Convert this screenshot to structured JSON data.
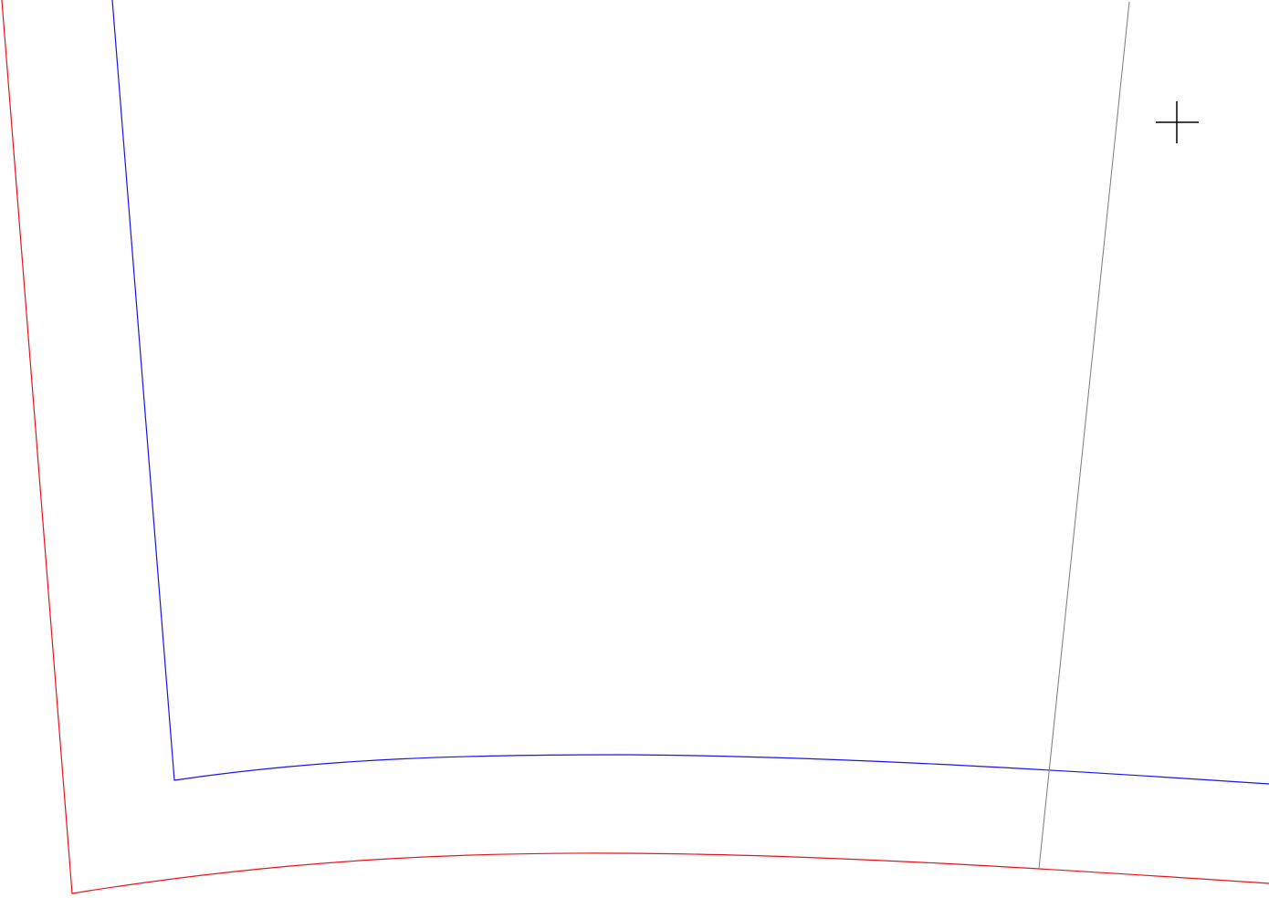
{
  "drawing": {
    "background_color": "#ffffff",
    "outer_outline": {
      "color": "#e8141b"
    },
    "inner_outline": {
      "color": "#1a14e8"
    },
    "guide_line": {
      "color": "#7a7a7a"
    },
    "cursor": {
      "icon": "crosshair-cursor-icon",
      "color": "#000000"
    }
  }
}
